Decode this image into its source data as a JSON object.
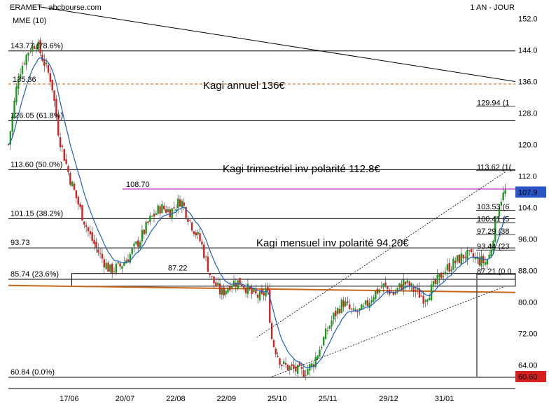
{
  "header": {
    "source": "ERAMET - abcbourse.com",
    "period": "1 AN - JOUR"
  },
  "chart_data": {
    "type": "candlestick",
    "title": "",
    "xlabel": "",
    "ylabel": "",
    "ylim": [
      58,
      156
    ],
    "y_ticks": [
      64,
      72,
      80,
      88,
      96,
      104,
      112,
      120,
      128,
      136,
      144,
      152
    ],
    "y_tick_labels": [
      "64.00",
      "72.00",
      "80.00",
      "88.00",
      "96.00",
      "104.0",
      "112.0",
      "120.0",
      "128.0",
      "136.0",
      "144.0",
      "152.0"
    ],
    "x_tick_labels": [
      "17/06",
      "20/07",
      "22/08",
      "22/09",
      "25/10",
      "25/11",
      "29/12",
      "31/01"
    ],
    "x_tick_positions": [
      0.12,
      0.23,
      0.33,
      0.43,
      0.53,
      0.63,
      0.75,
      0.86
    ],
    "last_price": "107.9",
    "last_price_value": 107.9,
    "low_marker": "60.60",
    "low_marker_value": 60.6,
    "moving_average": {
      "name": "MME (10)",
      "color": "#1f5fbf"
    },
    "fibonacci_levels": [
      {
        "price": 143.77,
        "label": "143.77  (78.6%)"
      },
      {
        "price": 126.05,
        "label": "126.05  (61.8%)"
      },
      {
        "price": 113.6,
        "label": "113.60  (50.0%)"
      },
      {
        "price": 101.15,
        "label": "101.15  (38.2%)"
      },
      {
        "price": 93.73,
        "label": "93.73"
      },
      {
        "price": 85.74,
        "label": "85.74  (23.6%)"
      },
      {
        "price": 60.84,
        "label": "60.84  (0.0%)"
      }
    ],
    "right_levels": [
      {
        "price": 129.94,
        "label": "129.94  (1"
      },
      {
        "price": 113.62,
        "label": "113.62  (1("
      },
      {
        "price": 103.53,
        "label": "103.53  (6"
      },
      {
        "price": 100.41,
        "label": "100.41  (5"
      },
      {
        "price": 97.29,
        "label": "97.29  (38"
      },
      {
        "price": 93.44,
        "label": "93.44  (23"
      },
      {
        "price": 87.21,
        "label": "87.21  (0.0"
      }
    ],
    "other_levels": [
      {
        "price": 108.7,
        "label": "108.70",
        "color": "#b000b0"
      },
      {
        "price": 87.22,
        "label": "87.22",
        "color": "#000000"
      }
    ],
    "dashed_level": {
      "price": 135.36,
      "label": "135.36",
      "color": "#d4660a"
    },
    "annotations": [
      {
        "text": "Kagi annuel 136€",
        "color": "#d4660a"
      },
      {
        "text": "Kagi trimestriel inv polarité 112.8€",
        "color": "#000000"
      },
      {
        "text": "Kagi mensuel inv polarité 94.20€",
        "color": "#1a9a1a"
      }
    ],
    "colors": {
      "up": "#1a9a1a",
      "down": "#d42020",
      "support": "#c8661a",
      "grid": "#000000"
    },
    "ohlc_anchors": [
      [
        0.0,
        120
      ],
      [
        0.02,
        138
      ],
      [
        0.04,
        144
      ],
      [
        0.055,
        146
      ],
      [
        0.07,
        141
      ],
      [
        0.085,
        136
      ],
      [
        0.1,
        122
      ],
      [
        0.12,
        112
      ],
      [
        0.14,
        104
      ],
      [
        0.16,
        97
      ],
      [
        0.18,
        92
      ],
      [
        0.2,
        88
      ],
      [
        0.22,
        89
      ],
      [
        0.24,
        92
      ],
      [
        0.26,
        96
      ],
      [
        0.28,
        101
      ],
      [
        0.3,
        104
      ],
      [
        0.32,
        103
      ],
      [
        0.34,
        106
      ],
      [
        0.36,
        100
      ],
      [
        0.38,
        95
      ],
      [
        0.4,
        86
      ],
      [
        0.42,
        82
      ],
      [
        0.44,
        85
      ],
      [
        0.46,
        85
      ],
      [
        0.48,
        82
      ],
      [
        0.5,
        81
      ],
      [
        0.51,
        84
      ],
      [
        0.52,
        70
      ],
      [
        0.54,
        64
      ],
      [
        0.56,
        63
      ],
      [
        0.58,
        62
      ],
      [
        0.6,
        64
      ],
      [
        0.62,
        70
      ],
      [
        0.64,
        76
      ],
      [
        0.66,
        80
      ],
      [
        0.68,
        77
      ],
      [
        0.7,
        78
      ],
      [
        0.72,
        82
      ],
      [
        0.74,
        84
      ],
      [
        0.76,
        82
      ],
      [
        0.78,
        85
      ],
      [
        0.8,
        83
      ],
      [
        0.82,
        81
      ],
      [
        0.84,
        84
      ],
      [
        0.86,
        88
      ],
      [
        0.88,
        90
      ],
      [
        0.9,
        92
      ],
      [
        0.92,
        91
      ],
      [
        0.94,
        90
      ],
      [
        0.95,
        92
      ],
      [
        0.96,
        100
      ],
      [
        0.97,
        106
      ],
      [
        0.98,
        107.9
      ]
    ],
    "low_price": 60.6,
    "trend_channel": {
      "lower_start": {
        "x": 0.52,
        "price": 61
      },
      "lower_end": {
        "x": 0.98,
        "price": 84
      },
      "upper_start": {
        "x": 0.49,
        "price": 71
      },
      "upper_end": {
        "x": 0.98,
        "price": 113
      }
    },
    "long_trendline": {
      "start": {
        "x": 0.06,
        "price": 155
      },
      "end": {
        "x": 1.0,
        "price": 136
      }
    },
    "support_line": {
      "start_price": 84.2,
      "end_price": 82.4
    },
    "support_box": {
      "x_start": 0.125,
      "x_end": 1.0,
      "top": 87.22,
      "bottom": 84.0
    }
  }
}
